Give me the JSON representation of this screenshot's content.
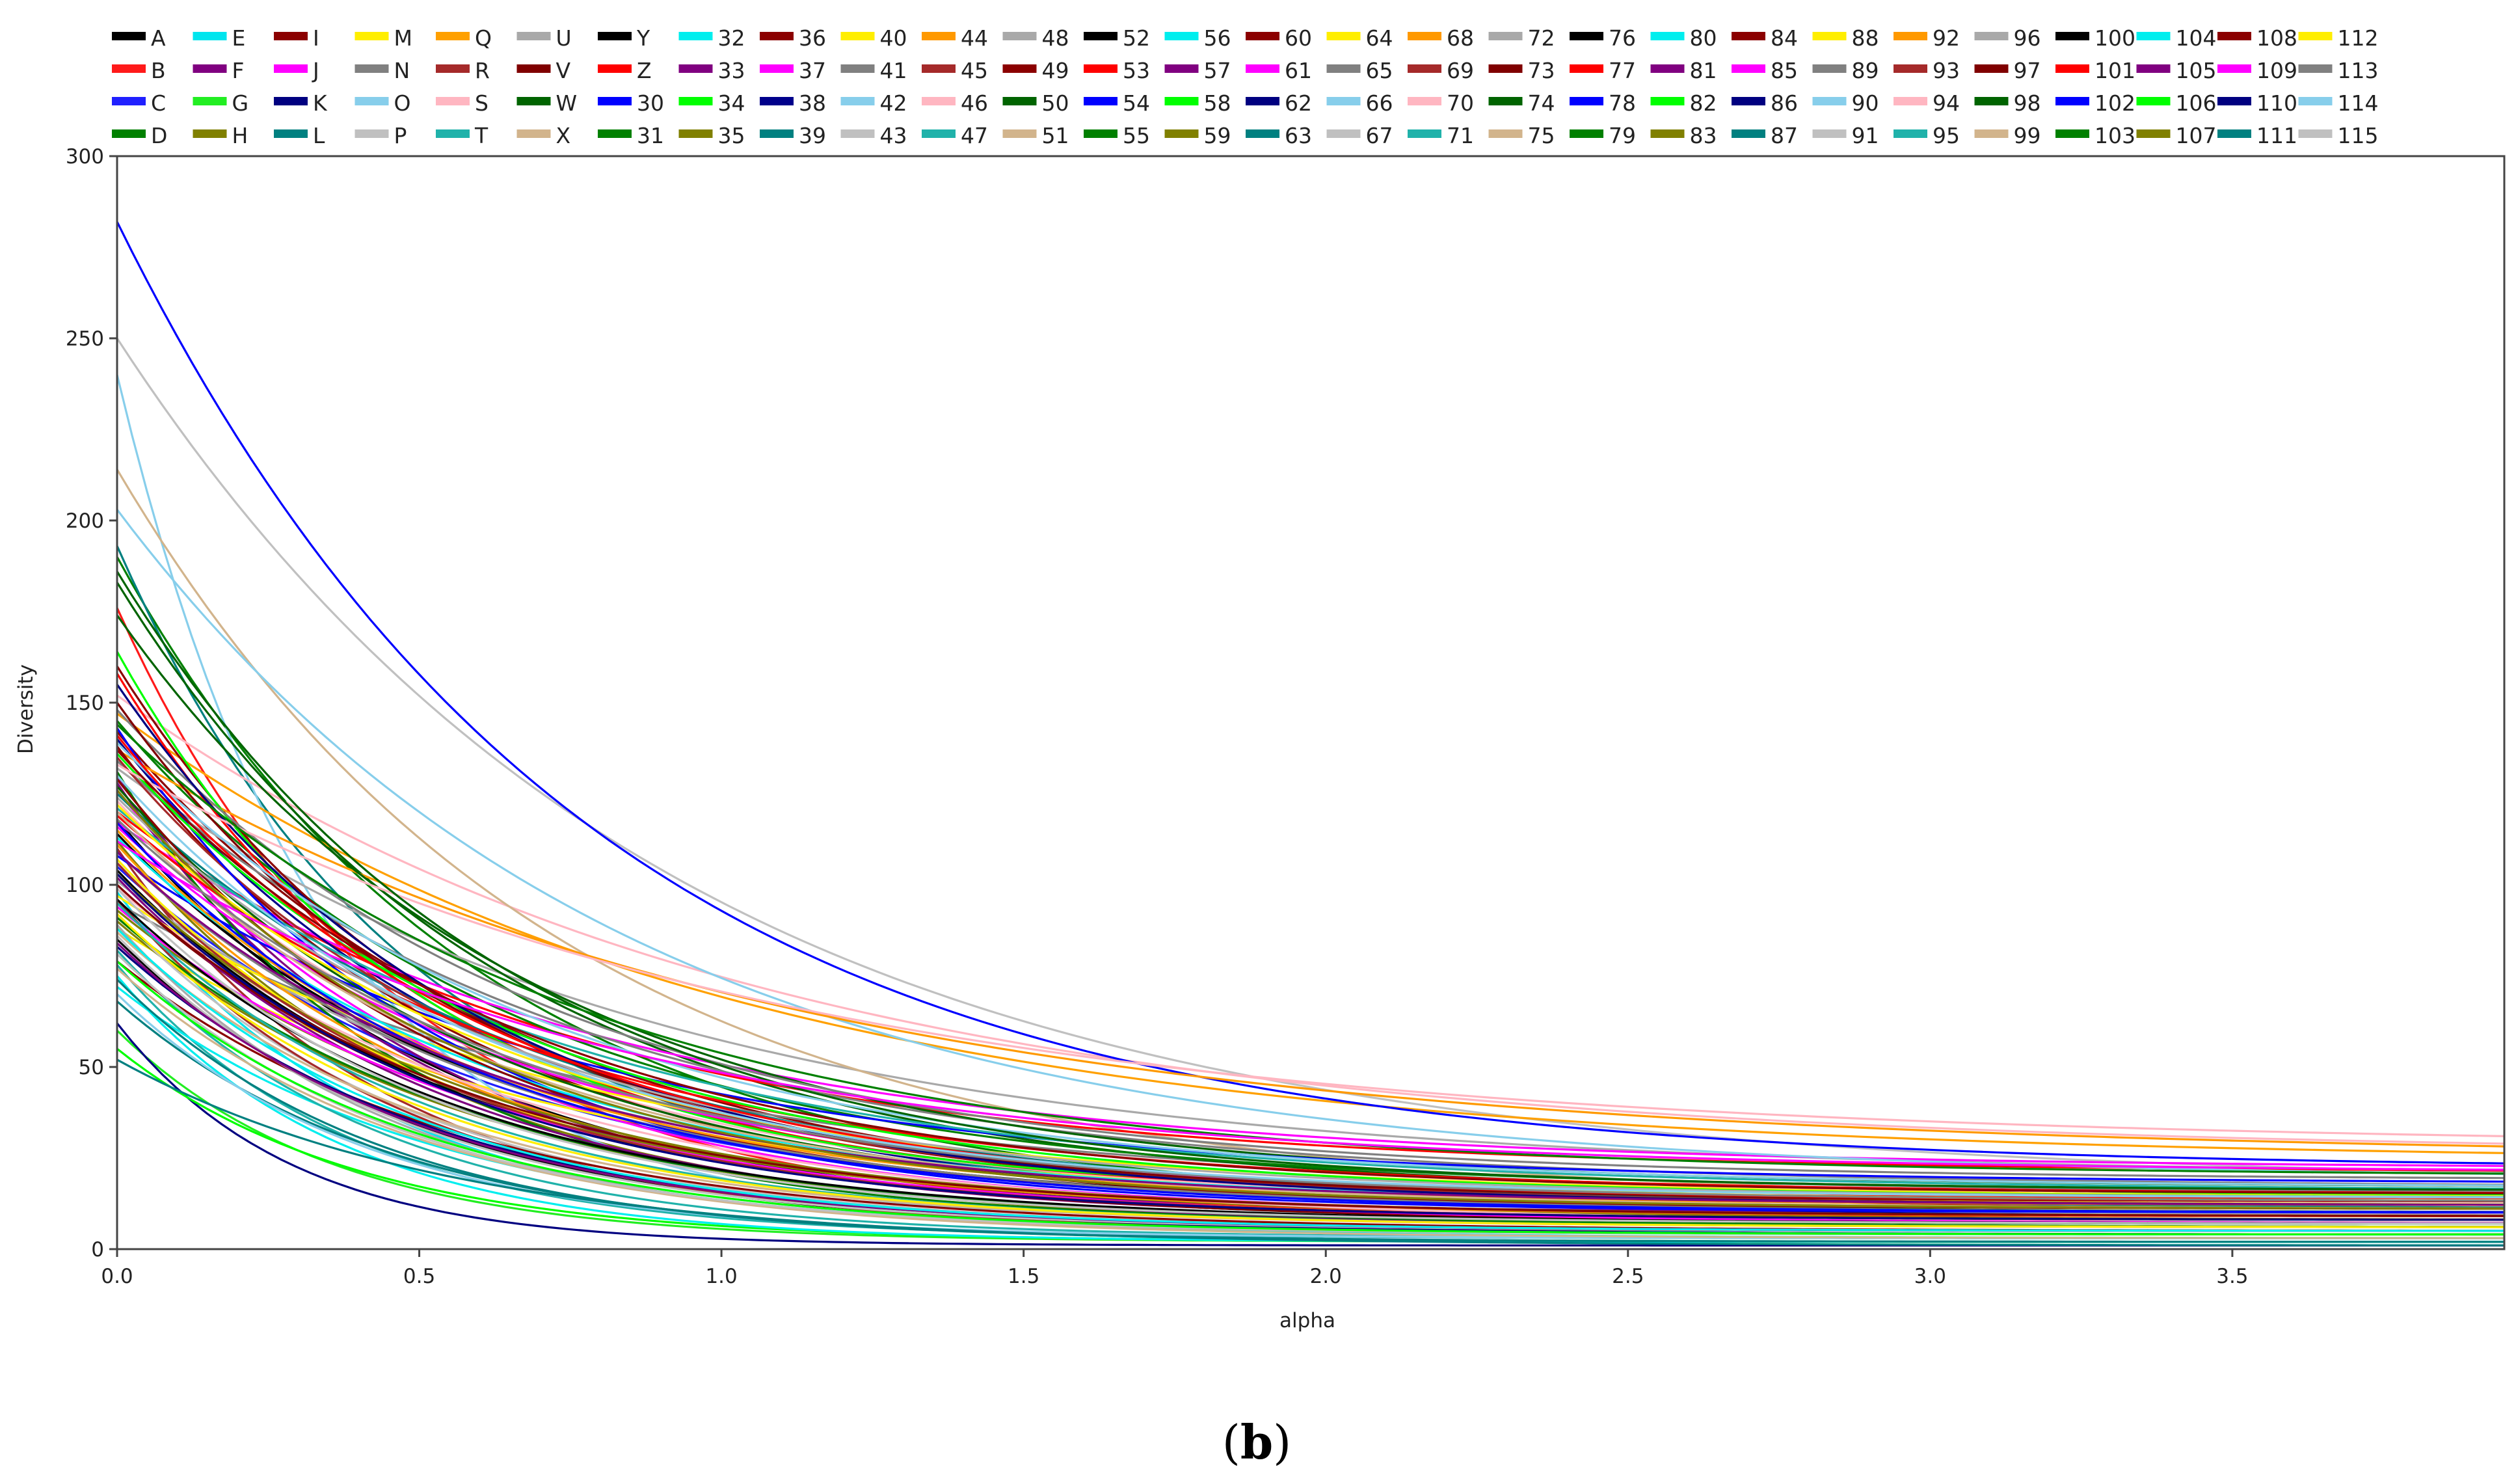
{
  "chart_data": {
    "type": "line",
    "xlabel": "alpha",
    "ylabel": "Diversity",
    "panel_label_prefix": "(",
    "panel_label_letter": "b",
    "panel_label_suffix": ")",
    "xlim": [
      0,
      3.95
    ],
    "ylim": [
      0,
      300
    ],
    "x_ticks": [
      "0.0",
      "0.5",
      "1.0",
      "1.5",
      "2.0",
      "2.5",
      "3.0",
      "3.5"
    ],
    "y_ticks": [
      "0",
      "50",
      "100",
      "150",
      "200",
      "250",
      "300"
    ],
    "grid": false,
    "legend_position": "top",
    "curve_model": "diversity(alpha) = floor + (start - floor) * exp(-decay * alpha)",
    "series": [
      {
        "name": "A",
        "color": "#000000",
        "start": 118,
        "floor": 7,
        "decay": 1.8
      },
      {
        "name": "B",
        "color": "#ff1a1a",
        "start": 176,
        "floor": 9,
        "decay": 2.2
      },
      {
        "name": "C",
        "color": "#2020ff",
        "start": 105,
        "floor": 10,
        "decay": 1.6
      },
      {
        "name": "D",
        "color": "#008000",
        "start": 190,
        "floor": 12,
        "decay": 1.7
      },
      {
        "name": "E",
        "color": "#00e5ee",
        "start": 98,
        "floor": 5,
        "decay": 2.4
      },
      {
        "name": "F",
        "color": "#800080",
        "start": 130,
        "floor": 8,
        "decay": 2.0
      },
      {
        "name": "G",
        "color": "#22ee22",
        "start": 60,
        "floor": 2,
        "decay": 2.8
      },
      {
        "name": "H",
        "color": "#808000",
        "start": 112,
        "floor": 6,
        "decay": 1.9
      },
      {
        "name": "I",
        "color": "#8b0000",
        "start": 142,
        "floor": 11,
        "decay": 1.5
      },
      {
        "name": "J",
        "color": "#ff00ff",
        "start": 126,
        "floor": 9,
        "decay": 1.8
      },
      {
        "name": "K",
        "color": "#000080",
        "start": 62,
        "floor": 1,
        "decay": 3.5
      },
      {
        "name": "L",
        "color": "#008080",
        "start": 193,
        "floor": 14,
        "decay": 2.1
      },
      {
        "name": "M",
        "color": "#ffee00",
        "start": 88,
        "floor": 12,
        "decay": 1.4
      },
      {
        "name": "N",
        "color": "#808080",
        "start": 95,
        "floor": 15,
        "decay": 1.2
      },
      {
        "name": "O",
        "color": "#87ceeb",
        "start": 240,
        "floor": 8,
        "decay": 3.0
      },
      {
        "name": "P",
        "color": "#c0c0c0",
        "start": 250,
        "floor": 18,
        "decay": 1.1
      },
      {
        "name": "Q",
        "color": "#ffa000",
        "start": 147,
        "floor": 24,
        "decay": 1.0
      },
      {
        "name": "R",
        "color": "#a52a2a",
        "start": 110,
        "floor": 5,
        "decay": 2.3
      },
      {
        "name": "S",
        "color": "#ffb6c1",
        "start": 152,
        "floor": 26,
        "decay": 0.95
      },
      {
        "name": "T",
        "color": "#20b2aa",
        "start": 78,
        "floor": 3,
        "decay": 2.6
      },
      {
        "name": "U",
        "color": "#a9a9a9",
        "start": 132,
        "floor": 20,
        "decay": 1.1
      },
      {
        "name": "V",
        "color": "#800000",
        "start": 100,
        "floor": 7,
        "decay": 1.7
      },
      {
        "name": "W",
        "color": "#006400",
        "start": 183,
        "floor": 15,
        "decay": 1.6
      },
      {
        "name": "X",
        "color": "#d2b48c",
        "start": 214,
        "floor": 13,
        "decay": 1.4
      },
      {
        "name": "Y",
        "color": "#000000",
        "start": 85,
        "floor": 4,
        "decay": 2.0
      },
      {
        "name": "Z",
        "color": "#ff0000",
        "start": 120,
        "floor": 21,
        "decay": 1.3
      },
      {
        "name": "30",
        "color": "#0000ff",
        "start": 282,
        "floor": 22,
        "decay": 1.3
      },
      {
        "name": "31",
        "color": "#008000",
        "start": 145,
        "floor": 16,
        "decay": 1.5
      },
      {
        "name": "32",
        "color": "#00eeee",
        "start": 72,
        "floor": 3,
        "decay": 1.9
      },
      {
        "name": "33",
        "color": "#800080",
        "start": 128,
        "floor": 10,
        "decay": 2.1
      },
      {
        "name": "34",
        "color": "#00ff00",
        "start": 55,
        "floor": 2,
        "decay": 2.5
      },
      {
        "name": "35",
        "color": "#808000",
        "start": 90,
        "floor": 6,
        "decay": 1.7
      },
      {
        "name": "36",
        "color": "#8b0000",
        "start": 160,
        "floor": 13,
        "decay": 1.8
      },
      {
        "name": "37",
        "color": "#ff00ff",
        "start": 117,
        "floor": 22,
        "decay": 1.2
      },
      {
        "name": "38",
        "color": "#00008b",
        "start": 140,
        "floor": 9,
        "decay": 1.6
      },
      {
        "name": "39",
        "color": "#008080",
        "start": 68,
        "floor": 2,
        "decay": 2.2
      },
      {
        "name": "40",
        "color": "#ffee00",
        "start": 107,
        "floor": 8,
        "decay": 1.8
      },
      {
        "name": "41",
        "color": "#808080",
        "start": 134,
        "floor": 17,
        "decay": 1.3
      },
      {
        "name": "42",
        "color": "#87ceeb",
        "start": 203,
        "floor": 19,
        "decay": 1.2
      },
      {
        "name": "43",
        "color": "#c0c0c0",
        "start": 92,
        "floor": 5,
        "decay": 2.0
      },
      {
        "name": "44",
        "color": "#ff9900",
        "start": 137,
        "floor": 25,
        "decay": 0.9
      },
      {
        "name": "45",
        "color": "#a52a2a",
        "start": 96,
        "floor": 4,
        "decay": 2.1
      },
      {
        "name": "46",
        "color": "#ffb6c1",
        "start": 123,
        "floor": 12,
        "decay": 1.6
      },
      {
        "name": "47",
        "color": "#20b2aa",
        "start": 82,
        "floor": 3,
        "decay": 2.3
      },
      {
        "name": "48",
        "color": "#a9a9a9",
        "start": 101,
        "floor": 9,
        "decay": 1.4
      },
      {
        "name": "49",
        "color": "#8b0000",
        "start": 79,
        "floor": 5,
        "decay": 1.8
      },
      {
        "name": "50",
        "color": "#006400",
        "start": 174,
        "floor": 17,
        "decay": 1.5
      },
      {
        "name": "51",
        "color": "#d2b48c",
        "start": 87,
        "floor": 6,
        "decay": 1.9
      },
      {
        "name": "52",
        "color": "#000000",
        "start": 114,
        "floor": 11,
        "decay": 1.7
      },
      {
        "name": "53",
        "color": "#ff0000",
        "start": 158,
        "floor": 14,
        "decay": 1.9
      },
      {
        "name": "54",
        "color": "#0000ff",
        "start": 108,
        "floor": 18,
        "decay": 1.3
      },
      {
        "name": "55",
        "color": "#008000",
        "start": 131,
        "floor": 7,
        "decay": 2.2
      },
      {
        "name": "56",
        "color": "#00eeee",
        "start": 75,
        "floor": 2,
        "decay": 2.7
      },
      {
        "name": "57",
        "color": "#800080",
        "start": 102,
        "floor": 6,
        "decay": 1.8
      },
      {
        "name": "58",
        "color": "#00ff00",
        "start": 164,
        "floor": 15,
        "decay": 2.0
      },
      {
        "name": "59",
        "color": "#808000",
        "start": 93,
        "floor": 8,
        "decay": 1.6
      },
      {
        "name": "60",
        "color": "#8b0000",
        "start": 138,
        "floor": 10,
        "decay": 1.7
      },
      {
        "name": "61",
        "color": "#ff00ff",
        "start": 116,
        "floor": 13,
        "decay": 1.5
      },
      {
        "name": "62",
        "color": "#000080",
        "start": 83,
        "floor": 4,
        "decay": 1.9
      },
      {
        "name": "63",
        "color": "#008080",
        "start": 125,
        "floor": 11,
        "decay": 1.4
      },
      {
        "name": "64",
        "color": "#ffee00",
        "start": 97,
        "floor": 14,
        "decay": 1.3
      },
      {
        "name": "65",
        "color": "#808080",
        "start": 148,
        "floor": 19,
        "decay": 1.4
      },
      {
        "name": "66",
        "color": "#87ceeb",
        "start": 70,
        "floor": 3,
        "decay": 2.4
      },
      {
        "name": "67",
        "color": "#c0c0c0",
        "start": 86,
        "floor": 5,
        "decay": 2.1
      },
      {
        "name": "68",
        "color": "#ff9900",
        "start": 111,
        "floor": 9,
        "decay": 1.8
      },
      {
        "name": "69",
        "color": "#a52a2a",
        "start": 135,
        "floor": 12,
        "decay": 1.6
      },
      {
        "name": "70",
        "color": "#ffb6c1",
        "start": 99,
        "floor": 7,
        "decay": 1.5
      },
      {
        "name": "71",
        "color": "#20b2aa",
        "start": 121,
        "floor": 16,
        "decay": 1.3
      },
      {
        "name": "72",
        "color": "#a9a9a9",
        "start": 89,
        "floor": 4,
        "decay": 2.2
      },
      {
        "name": "73",
        "color": "#800000",
        "start": 150,
        "floor": 13,
        "decay": 1.7
      },
      {
        "name": "74",
        "color": "#006400",
        "start": 127,
        "floor": 10,
        "decay": 1.6
      },
      {
        "name": "75",
        "color": "#d2b48c",
        "start": 77,
        "floor": 3,
        "decay": 2.0
      },
      {
        "name": "76",
        "color": "#000000",
        "start": 104,
        "floor": 8,
        "decay": 1.8
      },
      {
        "name": "77",
        "color": "#ff0000",
        "start": 119,
        "floor": 15,
        "decay": 1.4
      },
      {
        "name": "78",
        "color": "#0000ff",
        "start": 143,
        "floor": 10,
        "decay": 1.9
      },
      {
        "name": "79",
        "color": "#008000",
        "start": 91,
        "floor": 6,
        "decay": 1.7
      },
      {
        "name": "80",
        "color": "#00eeee",
        "start": 113,
        "floor": 12,
        "decay": 1.6
      },
      {
        "name": "81",
        "color": "#800080",
        "start": 84,
        "floor": 5,
        "decay": 2.0
      },
      {
        "name": "82",
        "color": "#00ff00",
        "start": 136,
        "floor": 14,
        "decay": 1.5
      },
      {
        "name": "83",
        "color": "#808000",
        "start": 103,
        "floor": 9,
        "decay": 1.7
      },
      {
        "name": "84",
        "color": "#8b0000",
        "start": 129,
        "floor": 11,
        "decay": 1.8
      },
      {
        "name": "85",
        "color": "#ff00ff",
        "start": 94,
        "floor": 7,
        "decay": 1.6
      },
      {
        "name": "86",
        "color": "#000080",
        "start": 155,
        "floor": 12,
        "decay": 1.7
      },
      {
        "name": "87",
        "color": "#008080",
        "start": 74,
        "floor": 2,
        "decay": 2.3
      },
      {
        "name": "88",
        "color": "#ffee00",
        "start": 122,
        "floor": 13,
        "decay": 1.5
      },
      {
        "name": "89",
        "color": "#808080",
        "start": 109,
        "floor": 10,
        "decay": 1.6
      },
      {
        "name": "90",
        "color": "#87ceeb",
        "start": 139,
        "floor": 17,
        "decay": 1.4
      },
      {
        "name": "91",
        "color": "#c0c0c0",
        "start": 81,
        "floor": 4,
        "decay": 2.1
      },
      {
        "name": "92",
        "color": "#ff9900",
        "start": 115,
        "floor": 12,
        "decay": 1.7
      },
      {
        "name": "93",
        "color": "#a52a2a",
        "start": 106,
        "floor": 8,
        "decay": 1.8
      },
      {
        "name": "94",
        "color": "#ffb6c1",
        "start": 133,
        "floor": 28,
        "decay": 0.9
      },
      {
        "name": "95",
        "color": "#20b2aa",
        "start": 95,
        "floor": 6,
        "decay": 1.9
      },
      {
        "name": "96",
        "color": "#a9a9a9",
        "start": 124,
        "floor": 14,
        "decay": 1.5
      },
      {
        "name": "97",
        "color": "#800000",
        "start": 100,
        "floor": 9,
        "decay": 1.7
      },
      {
        "name": "98",
        "color": "#006400",
        "start": 186,
        "floor": 16,
        "decay": 1.6
      },
      {
        "name": "99",
        "color": "#d2b48c",
        "start": 120,
        "floor": 11,
        "decay": 1.6
      },
      {
        "name": "100",
        "color": "#000000",
        "start": 96,
        "floor": 7,
        "decay": 1.8
      },
      {
        "name": "101",
        "color": "#ff0000",
        "start": 141,
        "floor": 13,
        "decay": 1.6
      },
      {
        "name": "102",
        "color": "#0000ff",
        "start": 117,
        "floor": 10,
        "decay": 1.7
      },
      {
        "name": "103",
        "color": "#008000",
        "start": 144,
        "floor": 20,
        "decay": 1.3
      },
      {
        "name": "104",
        "color": "#00eeee",
        "start": 88,
        "floor": 5,
        "decay": 2.0
      },
      {
        "name": "105",
        "color": "#800080",
        "start": 109,
        "floor": 12,
        "decay": 1.6
      },
      {
        "name": "106",
        "color": "#00ff00",
        "start": 79,
        "floor": 4,
        "decay": 2.0
      },
      {
        "name": "107",
        "color": "#808000",
        "start": 126,
        "floor": 11,
        "decay": 1.7
      },
      {
        "name": "108",
        "color": "#8b0000",
        "start": 137,
        "floor": 15,
        "decay": 1.5
      },
      {
        "name": "109",
        "color": "#ff00ff",
        "start": 112,
        "floor": 21,
        "decay": 1.2
      },
      {
        "name": "110",
        "color": "#000080",
        "start": 103,
        "floor": 8,
        "decay": 1.8
      },
      {
        "name": "111",
        "color": "#008080",
        "start": 52,
        "floor": 1,
        "decay": 1.8
      },
      {
        "name": "112",
        "color": "#ffee00",
        "start": 92,
        "floor": 6,
        "decay": 1.9
      },
      {
        "name": "113",
        "color": "#808080",
        "start": 118,
        "floor": 13,
        "decay": 1.5
      },
      {
        "name": "114",
        "color": "#87ceeb",
        "start": 130,
        "floor": 14,
        "decay": 1.6
      },
      {
        "name": "115",
        "color": "#c0c0c0",
        "start": 99,
        "floor": 7,
        "decay": 1.9
      }
    ]
  }
}
